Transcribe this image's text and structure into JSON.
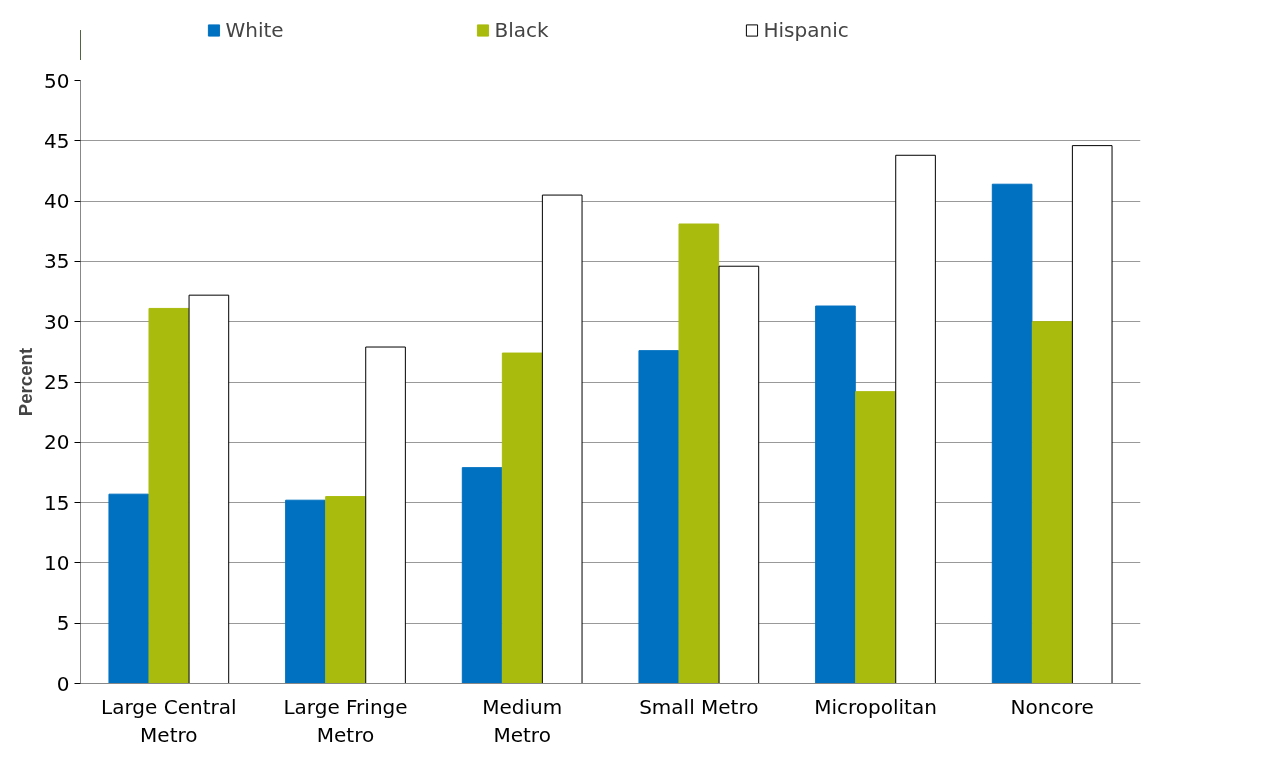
{
  "chart_data": {
    "type": "bar",
    "ylabel": "Percent",
    "categories": [
      "Large Central Metro",
      "Large Fringe Metro",
      "Medium Metro",
      "Small Metro",
      "Micropolitan",
      "Noncore"
    ],
    "series": [
      {
        "name": "White",
        "color": "#0070c0",
        "values": [
          15.7,
          15.2,
          17.9,
          27.6,
          31.3,
          41.4
        ]
      },
      {
        "name": "Black",
        "color": "#a9bb0c",
        "values": [
          31.1,
          15.5,
          27.4,
          38.1,
          24.2,
          30.0
        ]
      },
      {
        "name": "Hispanic",
        "color": "#ffffff",
        "values": [
          32.2,
          27.9,
          40.5,
          34.6,
          43.8,
          44.6
        ]
      }
    ],
    "ylim": [
      0,
      50
    ],
    "yticks": [
      0,
      5,
      10,
      15,
      20,
      25,
      30,
      35,
      40,
      45,
      50
    ],
    "grid": "y",
    "legend": "top"
  }
}
